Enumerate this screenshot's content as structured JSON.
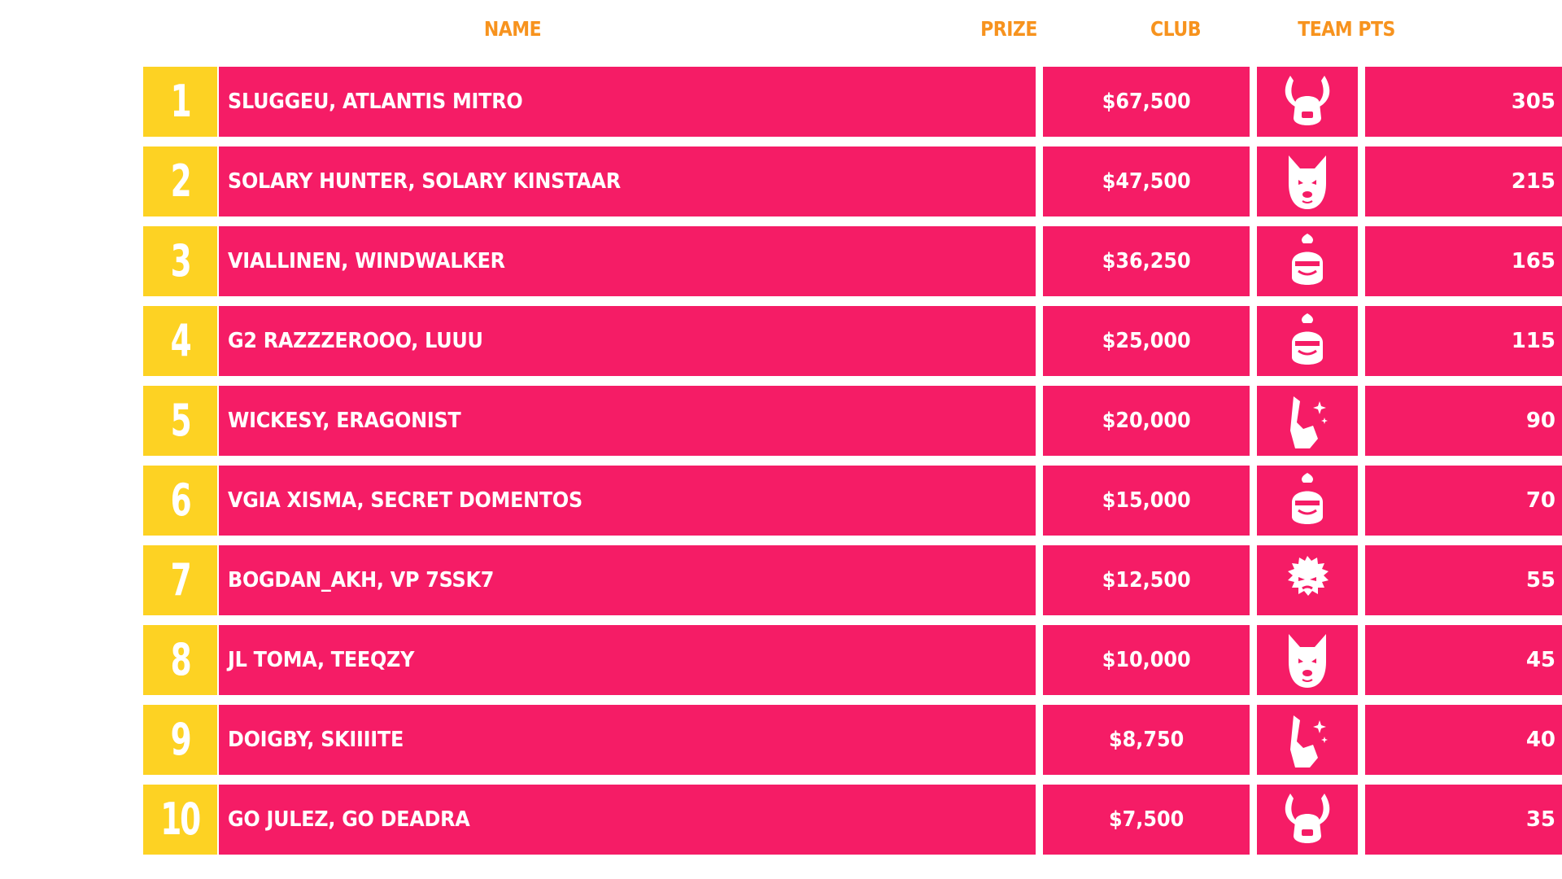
{
  "headers": {
    "name": "NAME",
    "prize": "PRIZE",
    "club": "CLUB",
    "team_pts": "TEAM PTS"
  },
  "colors": {
    "header": "#f7931e",
    "rank_bg": "#fdd223",
    "row_bg": "#f51c66",
    "text": "#ffffff"
  },
  "rows": [
    {
      "rank": "1",
      "name": "SLUGGEU, ATLANTIS MITRO",
      "prize": "$67,500",
      "club": "horned-helmet-icon",
      "pts": "305"
    },
    {
      "rank": "2",
      "name": "SOLARY HUNTER, SOLARY KINSTAAR",
      "prize": "$47,500",
      "club": "wolf-icon",
      "pts": "215"
    },
    {
      "rank": "3",
      "name": "VIALLINEN, WINDWALKER",
      "prize": "$36,250",
      "club": "knight-helmet-icon",
      "pts": "165"
    },
    {
      "rank": "4",
      "name": "G2 RAZZZEROOO, LUUU",
      "prize": "$25,000",
      "club": "knight-helmet-icon",
      "pts": "115"
    },
    {
      "rank": "5",
      "name": "WICKESY, ERAGONIST",
      "prize": "$20,000",
      "club": "llama-icon",
      "pts": "90"
    },
    {
      "rank": "6",
      "name": "VGIA XISMA, SECRET DOMENTOS",
      "prize": "$15,000",
      "club": "knight-helmet-icon",
      "pts": "70"
    },
    {
      "rank": "7",
      "name": "BOGDAN_AKH, VP 7SSK7",
      "prize": "$12,500",
      "club": "furball-icon",
      "pts": "55"
    },
    {
      "rank": "8",
      "name": "JL TOMA, TEEQZY",
      "prize": "$10,000",
      "club": "wolf-icon",
      "pts": "45"
    },
    {
      "rank": "9",
      "name": "DOIGBY, SKIIIITE",
      "prize": "$8,750",
      "club": "llama-icon",
      "pts": "40"
    },
    {
      "rank": "10",
      "name": "GO JULEZ, GO DEADRA",
      "prize": "$7,500",
      "club": "horned-helmet-icon",
      "pts": "35"
    }
  ]
}
